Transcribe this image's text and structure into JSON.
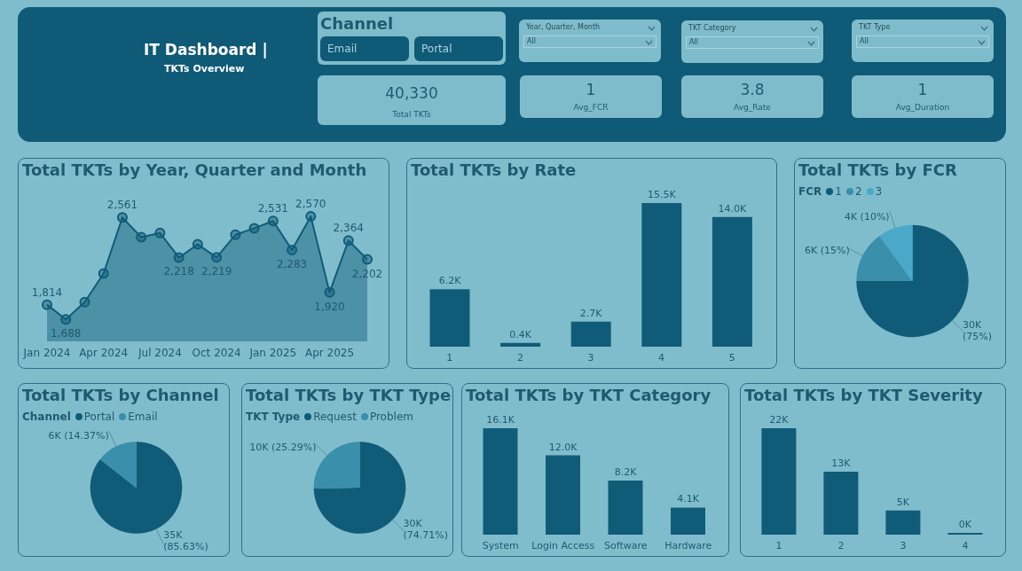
{
  "chart_data": [
    {
      "type": "other",
      "title": "IT Dashboard |",
      "subtitle": "TKTs Overview",
      "annotations": [
        "Channel",
        "Email",
        "Portal",
        "Year, Quarter, Month",
        "All",
        "TKT Category",
        "All",
        "TKT Type",
        "All",
        "40,330",
        "Total TKTs",
        "1",
        "Avg_FCR",
        "3.8",
        "Avg_Rate",
        "1",
        "Avg_Duration"
      ]
    },
    {
      "type": "area",
      "title": "Total TKTs by Year, Quarter and Month",
      "categories": [
        "Jan 2024",
        null,
        null,
        "Apr 2024",
        null,
        null,
        "Jul 2024",
        null,
        null,
        "Oct 2024",
        null,
        null,
        "Jan 2025",
        null,
        null,
        "Apr 2025",
        null,
        null
      ],
      "values": [
        1814,
        1688,
        1836,
        2081,
        2561,
        2392,
        2428,
        2218,
        2331,
        2219,
        2413,
        2469,
        2531,
        2283,
        2570,
        1920,
        2364,
        2202
      ],
      "value_labels": [
        "1,814",
        "1,688",
        null,
        null,
        "2,561",
        null,
        null,
        "2,218",
        null,
        "2,219",
        null,
        null,
        "2,531",
        "2,283",
        "2,570",
        "1,920",
        "2,364",
        "2,202"
      ],
      "color": "#105c78",
      "tick_labels": "x",
      "marker": "circle",
      "grid": false
    },
    {
      "type": "bar",
      "title": "Total TKTs by Rate",
      "categories": [
        "1",
        "2",
        "3",
        "4",
        "5"
      ],
      "values": [
        6200,
        400,
        2700,
        15500,
        14000
      ],
      "value_labels": [
        "6.2K",
        "0.4K",
        "2.7K",
        "15.5K",
        "14.0K"
      ],
      "color": "#105c78",
      "tick_labels": "x",
      "grid": false
    },
    {
      "type": "pie",
      "title": "Total TKTs by FCR",
      "legend_title": "FCR",
      "legend": "top left",
      "categories": [
        "1",
        "2",
        "3"
      ],
      "values": [
        75,
        15,
        10
      ],
      "value_labels": [
        "30K (75%)",
        "6K (15%)",
        "4K (10%)"
      ],
      "colors": [
        "#105c78",
        "#3a8fab",
        "#4aa9c8"
      ]
    },
    {
      "type": "pie",
      "title": "Total TKTs by Channel",
      "legend_title": "Channel",
      "legend": "top left",
      "categories": [
        "Portal",
        "Email"
      ],
      "values": [
        85.63,
        14.37
      ],
      "value_labels": [
        "35K (85.63%)",
        "6K (14.37%)"
      ],
      "colors": [
        "#105c78",
        "#3a8fab"
      ]
    },
    {
      "type": "pie",
      "title": "Total TKTs by TKT Type",
      "legend_title": "TKT Type",
      "legend": "top left",
      "categories": [
        "Request",
        "Problem"
      ],
      "values": [
        74.71,
        25.29
      ],
      "value_labels": [
        "30K (74.71%)",
        "10K (25.29%)"
      ],
      "colors": [
        "#105c78",
        "#3a8fab"
      ]
    },
    {
      "type": "bar",
      "title": "Total TKTs by TKT Category",
      "categories": [
        "System",
        "Login Access",
        "Software",
        "Hardware"
      ],
      "values": [
        16100,
        12000,
        8200,
        4100
      ],
      "value_labels": [
        "16.1K",
        "12.0K",
        "8.2K",
        "4.1K"
      ],
      "color": "#105c78",
      "tick_labels": "x",
      "grid": false
    },
    {
      "type": "bar",
      "title": "Total TKTs by TKT Severity",
      "categories": [
        "1",
        "2",
        "3",
        "4"
      ],
      "values": [
        22000,
        13000,
        5000,
        0
      ],
      "value_labels": [
        "22K",
        "13K",
        "5K",
        "0K"
      ],
      "color": "#105c78",
      "tick_labels": "x",
      "grid": false
    }
  ]
}
